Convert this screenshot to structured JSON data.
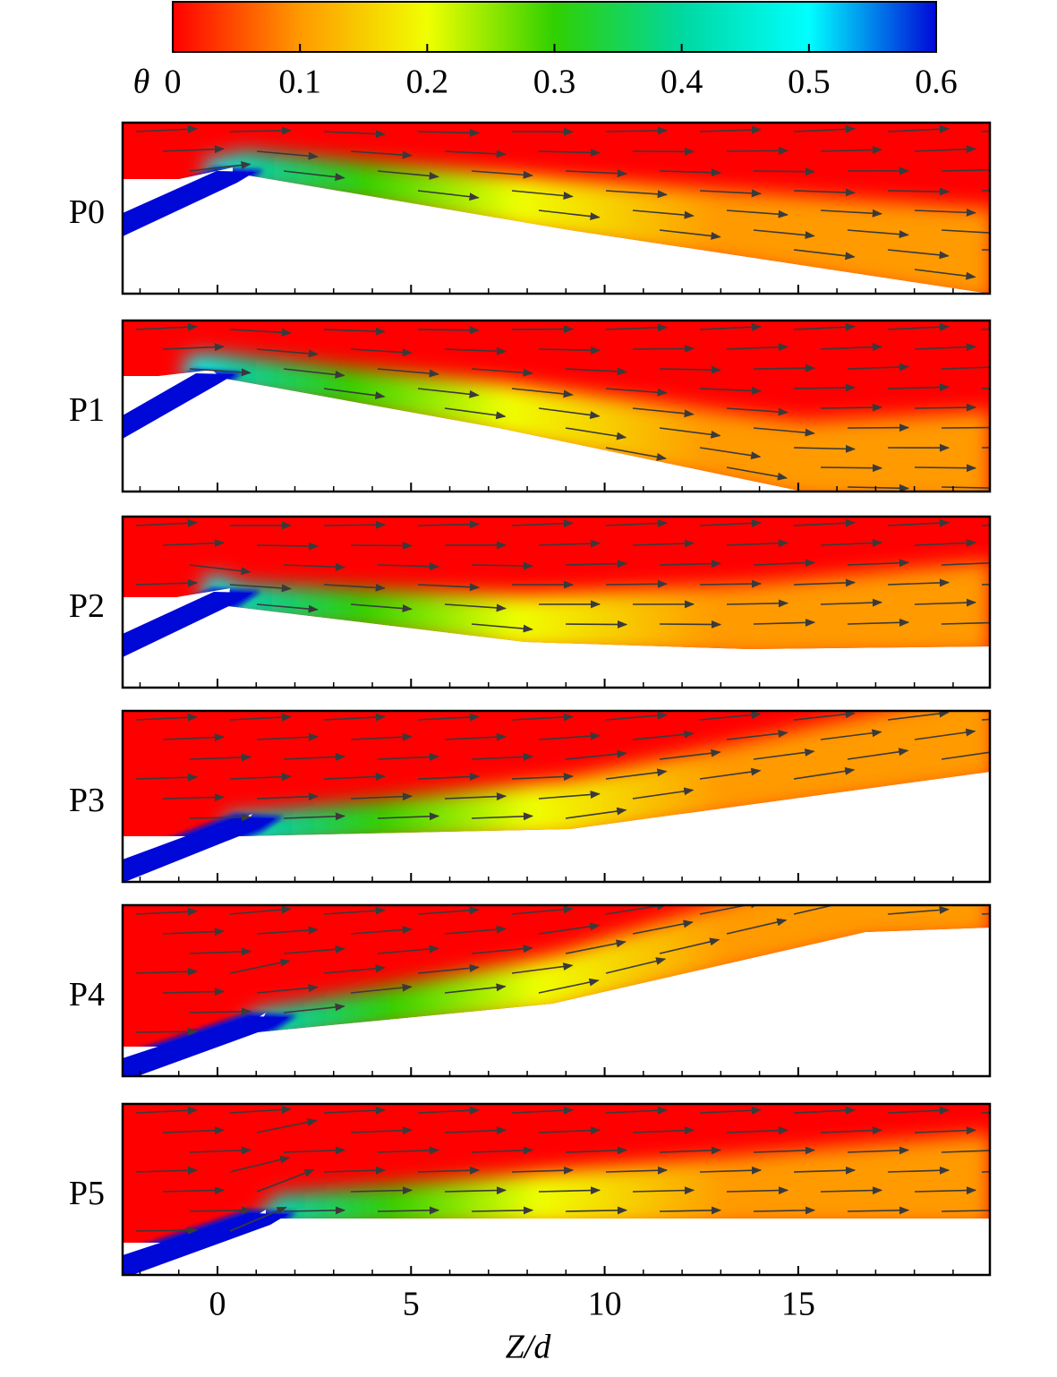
{
  "chart_data": {
    "type": "contour",
    "colorbar": {
      "label": "θ",
      "lim": [
        0,
        0.6
      ],
      "ticks": [
        0,
        0.1,
        0.2,
        0.3,
        0.4,
        0.5,
        0.6
      ],
      "colormap": [
        "#ff0000",
        "#ff9a00",
        "#f0ff00",
        "#30d000",
        "#00d8a0",
        "#00ffff",
        "#0008d8"
      ]
    },
    "xlabel": "Z/d",
    "xlim": [
      -2.45,
      19.95
    ],
    "xticks": [
      0,
      5,
      10,
      15
    ],
    "xminorticks": [
      -2,
      -1,
      1,
      2,
      3,
      4,
      6,
      7,
      8,
      9,
      11,
      12,
      13,
      14,
      16,
      17,
      18,
      19
    ],
    "panels": [
      {
        "label": "P0"
      },
      {
        "label": "P1"
      },
      {
        "label": "P2"
      },
      {
        "label": "P3"
      },
      {
        "label": "P4"
      },
      {
        "label": "P5"
      }
    ]
  }
}
